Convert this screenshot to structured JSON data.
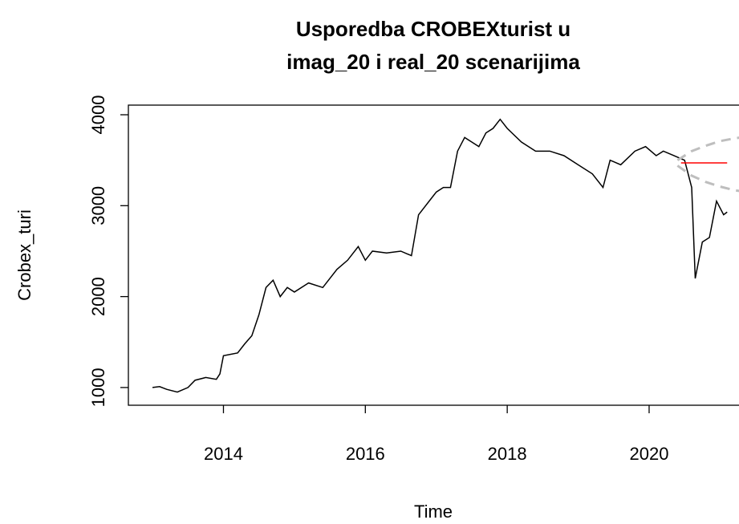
{
  "chart_data": {
    "type": "line",
    "title": "Usporedba CROBEXturist u",
    "subtitle": "imag_20 i real_20 scenarijima",
    "x_label": "Time",
    "y_label": "Crobex_turi",
    "xlim": [
      2012.66,
      2021.38
    ],
    "ylim": [
      805,
      4106
    ],
    "xticks": [
      2014,
      2016,
      2018,
      2020
    ],
    "yticks": [
      1000,
      2000,
      3000,
      4000
    ],
    "series": [
      {
        "color": "#000000",
        "dash": false,
        "x": [
          2013.0,
          2013.1,
          2013.2,
          2013.35,
          2013.5,
          2013.6,
          2013.75,
          2013.9,
          2013.95,
          2014.0,
          2014.2,
          2014.3,
          2014.4,
          2014.5,
          2014.6,
          2014.7,
          2014.8,
          2014.9,
          2015.0,
          2015.2,
          2015.4,
          2015.6,
          2015.75,
          2015.9,
          2016.0,
          2016.1,
          2016.3,
          2016.5,
          2016.65,
          2016.75,
          2016.9,
          2017.0,
          2017.1,
          2017.2,
          2017.3,
          2017.4,
          2017.5,
          2017.6,
          2017.7,
          2017.8,
          2017.9,
          2018.0,
          2018.2,
          2018.4,
          2018.6,
          2018.8,
          2019.0,
          2019.2,
          2019.35,
          2019.45,
          2019.6,
          2019.8,
          2019.95,
          2020.1,
          2020.2,
          2020.35,
          2020.5,
          2020.6,
          2020.65,
          2020.75,
          2020.85,
          2020.95,
          2021.05,
          2021.1
        ],
        "values": [
          1000,
          1010,
          980,
          950,
          1000,
          1080,
          1110,
          1090,
          1150,
          1350,
          1380,
          1480,
          1570,
          1800,
          2100,
          2180,
          2000,
          2100,
          2050,
          2150,
          2100,
          2300,
          2400,
          2550,
          2400,
          2500,
          2480,
          2500,
          2450,
          2900,
          3050,
          3150,
          3200,
          3200,
          3600,
          3750,
          3700,
          3650,
          3800,
          3850,
          3950,
          3850,
          3700,
          3600,
          3600,
          3550,
          3450,
          3350,
          3200,
          3500,
          3450,
          3600,
          3650,
          3550,
          3600,
          3550,
          3500,
          3200,
          2200,
          2600,
          2650,
          3050,
          2900,
          2930
        ]
      },
      {
        "color": "#ff0000",
        "dash": false,
        "x": [
          2020.45,
          2021.1
        ],
        "values": [
          3470,
          3470
        ]
      },
      {
        "color": "#bebebe",
        "dash": true,
        "x": [
          2020.4,
          2020.6,
          2020.8,
          2021.0,
          2021.2,
          2021.38
        ],
        "values": [
          3500,
          3600,
          3660,
          3710,
          3740,
          3760
        ]
      },
      {
        "color": "#bebebe",
        "dash": true,
        "x": [
          2020.4,
          2020.6,
          2020.8,
          2021.0,
          2021.2,
          2021.38
        ],
        "values": [
          3440,
          3330,
          3260,
          3210,
          3170,
          3150
        ]
      }
    ]
  }
}
